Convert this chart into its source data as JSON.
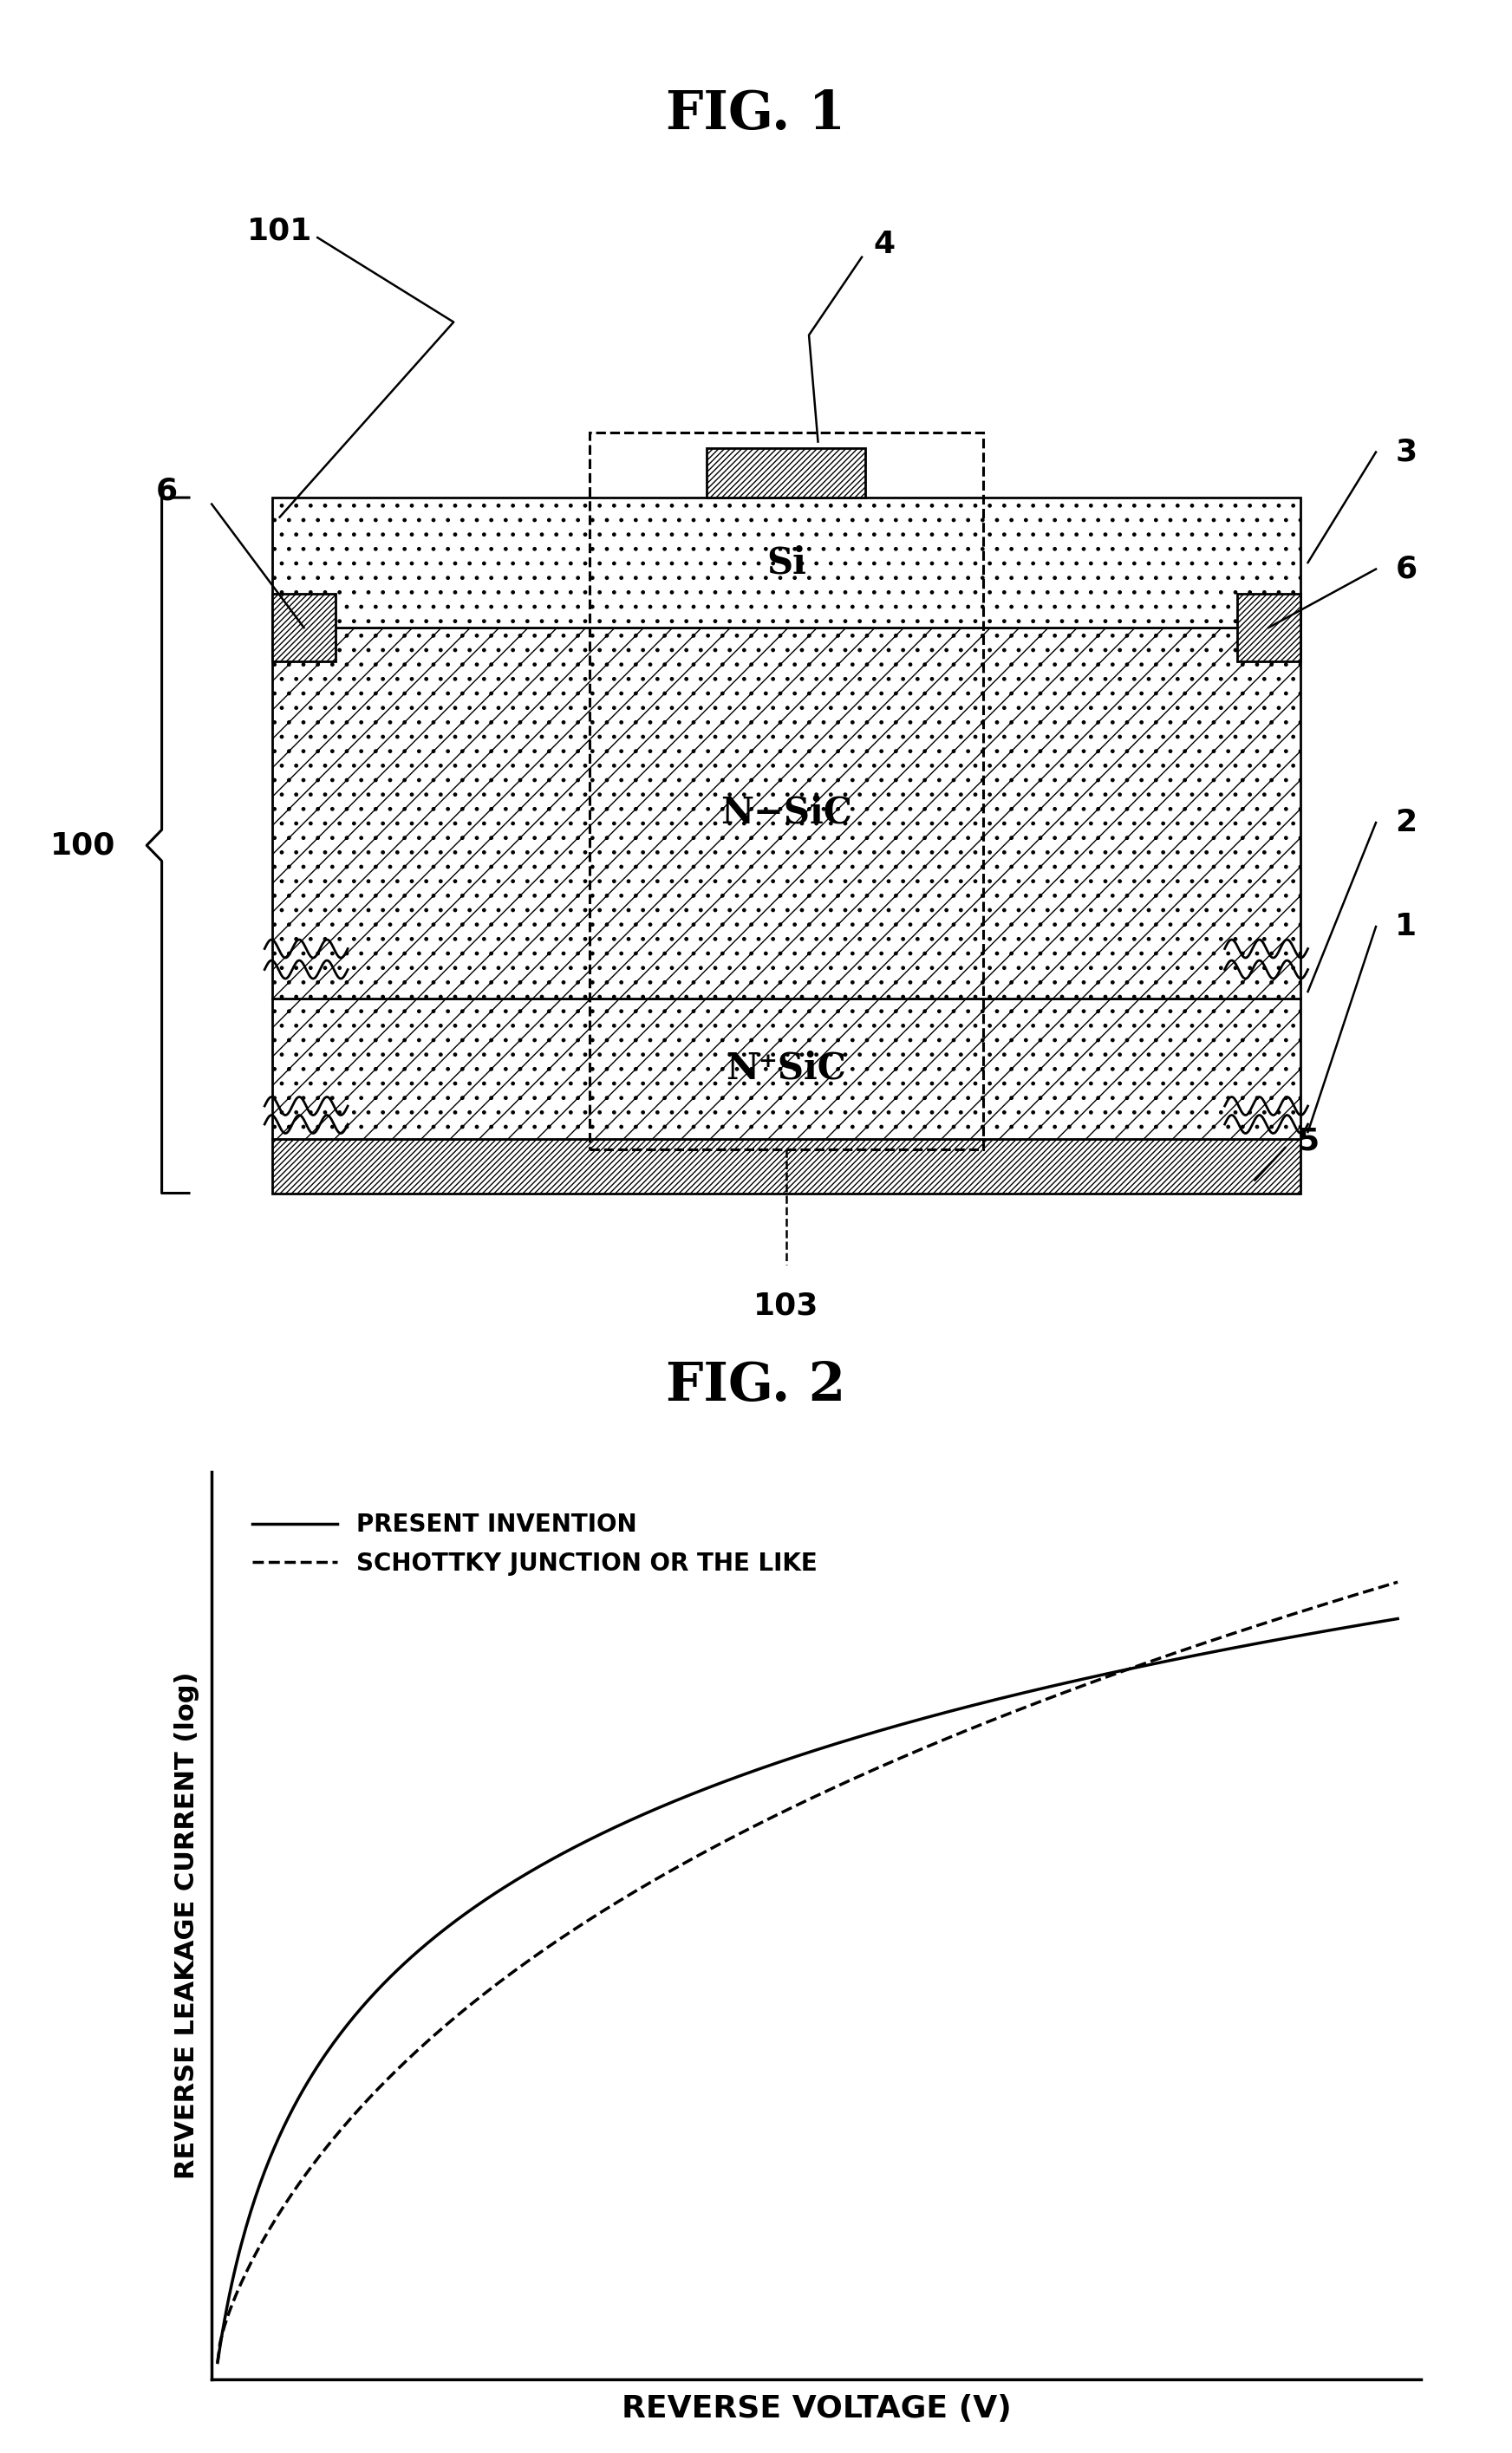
{
  "fig1_title": "FIG. 1",
  "fig2_title": "FIG. 2",
  "label_101": "101",
  "label_100": "100",
  "label_103": "103",
  "label_4": "4",
  "label_3": "3",
  "label_6a": "6",
  "label_6b": "6",
  "label_2": "2",
  "label_1": "1",
  "label_5": "5",
  "si_label": "Si",
  "nsic_label": "N−SiC",
  "nplussic_label": "N⁺SiC",
  "legend_solid": "PRESENT INVENTION",
  "legend_dashed": "SCHOTTKY JUNCTION OR THE LIKE",
  "ylabel": "REVERSE LEAKAGE CURRENT (log)",
  "xlabel": "REVERSE VOLTAGE (V)",
  "bg_color": "#ffffff",
  "line_color": "#000000"
}
